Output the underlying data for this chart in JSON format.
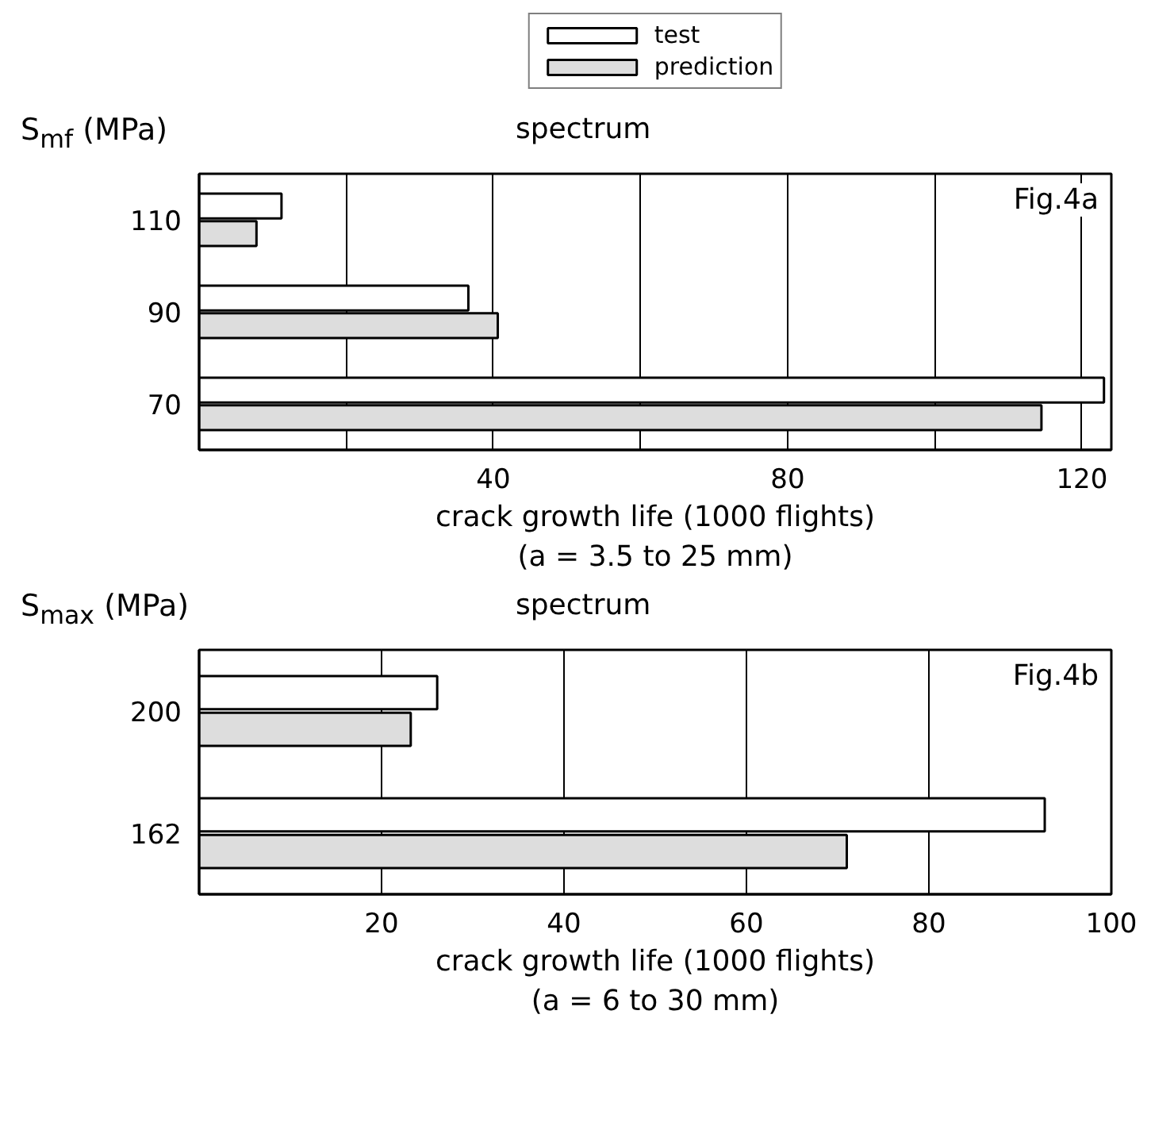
{
  "chart_data": [
    {
      "type": "bar",
      "orientation": "horizontal",
      "title": "spectrum",
      "ylabel": "S$_{mf}$ (MPa)",
      "xlabel": "crack growth life (1000 flights)\n(a = 3.5 to 25 mm)",
      "categories": [
        "110",
        "90",
        "70"
      ],
      "series": [
        {
          "name": "test",
          "color": "#ffffff",
          "values": [
            11.2,
            36.6,
            123
          ]
        },
        {
          "name": "prediction",
          "color": "#dddddd",
          "values": [
            7.8,
            40.6,
            114.5
          ]
        }
      ],
      "xlim": [
        0,
        124
      ],
      "xticks": [
        {
          "value": 20,
          "label": null
        },
        40,
        {
          "value": 60,
          "label": null
        },
        80,
        {
          "value": 100,
          "label": null
        },
        120
      ],
      "grid": "x",
      "legend": "top",
      "annotations": [
        "Fig.4a"
      ]
    },
    {
      "type": "bar",
      "orientation": "horizontal",
      "title": "spectrum",
      "ylabel": "S$_{max}$ (MPa)",
      "xlabel": "crack growth life (1000 flights)\n(a = 6 to 30 mm)",
      "categories": [
        "200",
        "162"
      ],
      "series": [
        {
          "color": "#ffffff",
          "values": [
            26.1,
            92.7
          ]
        },
        {
          "color": "#dddddd",
          "values": [
            23.2,
            71
          ]
        }
      ],
      "xlim": [
        0,
        100
      ],
      "xticks": [
        20,
        40,
        60,
        80,
        100
      ],
      "grid": "x",
      "annotations": [
        "Fig.4b"
      ]
    }
  ]
}
